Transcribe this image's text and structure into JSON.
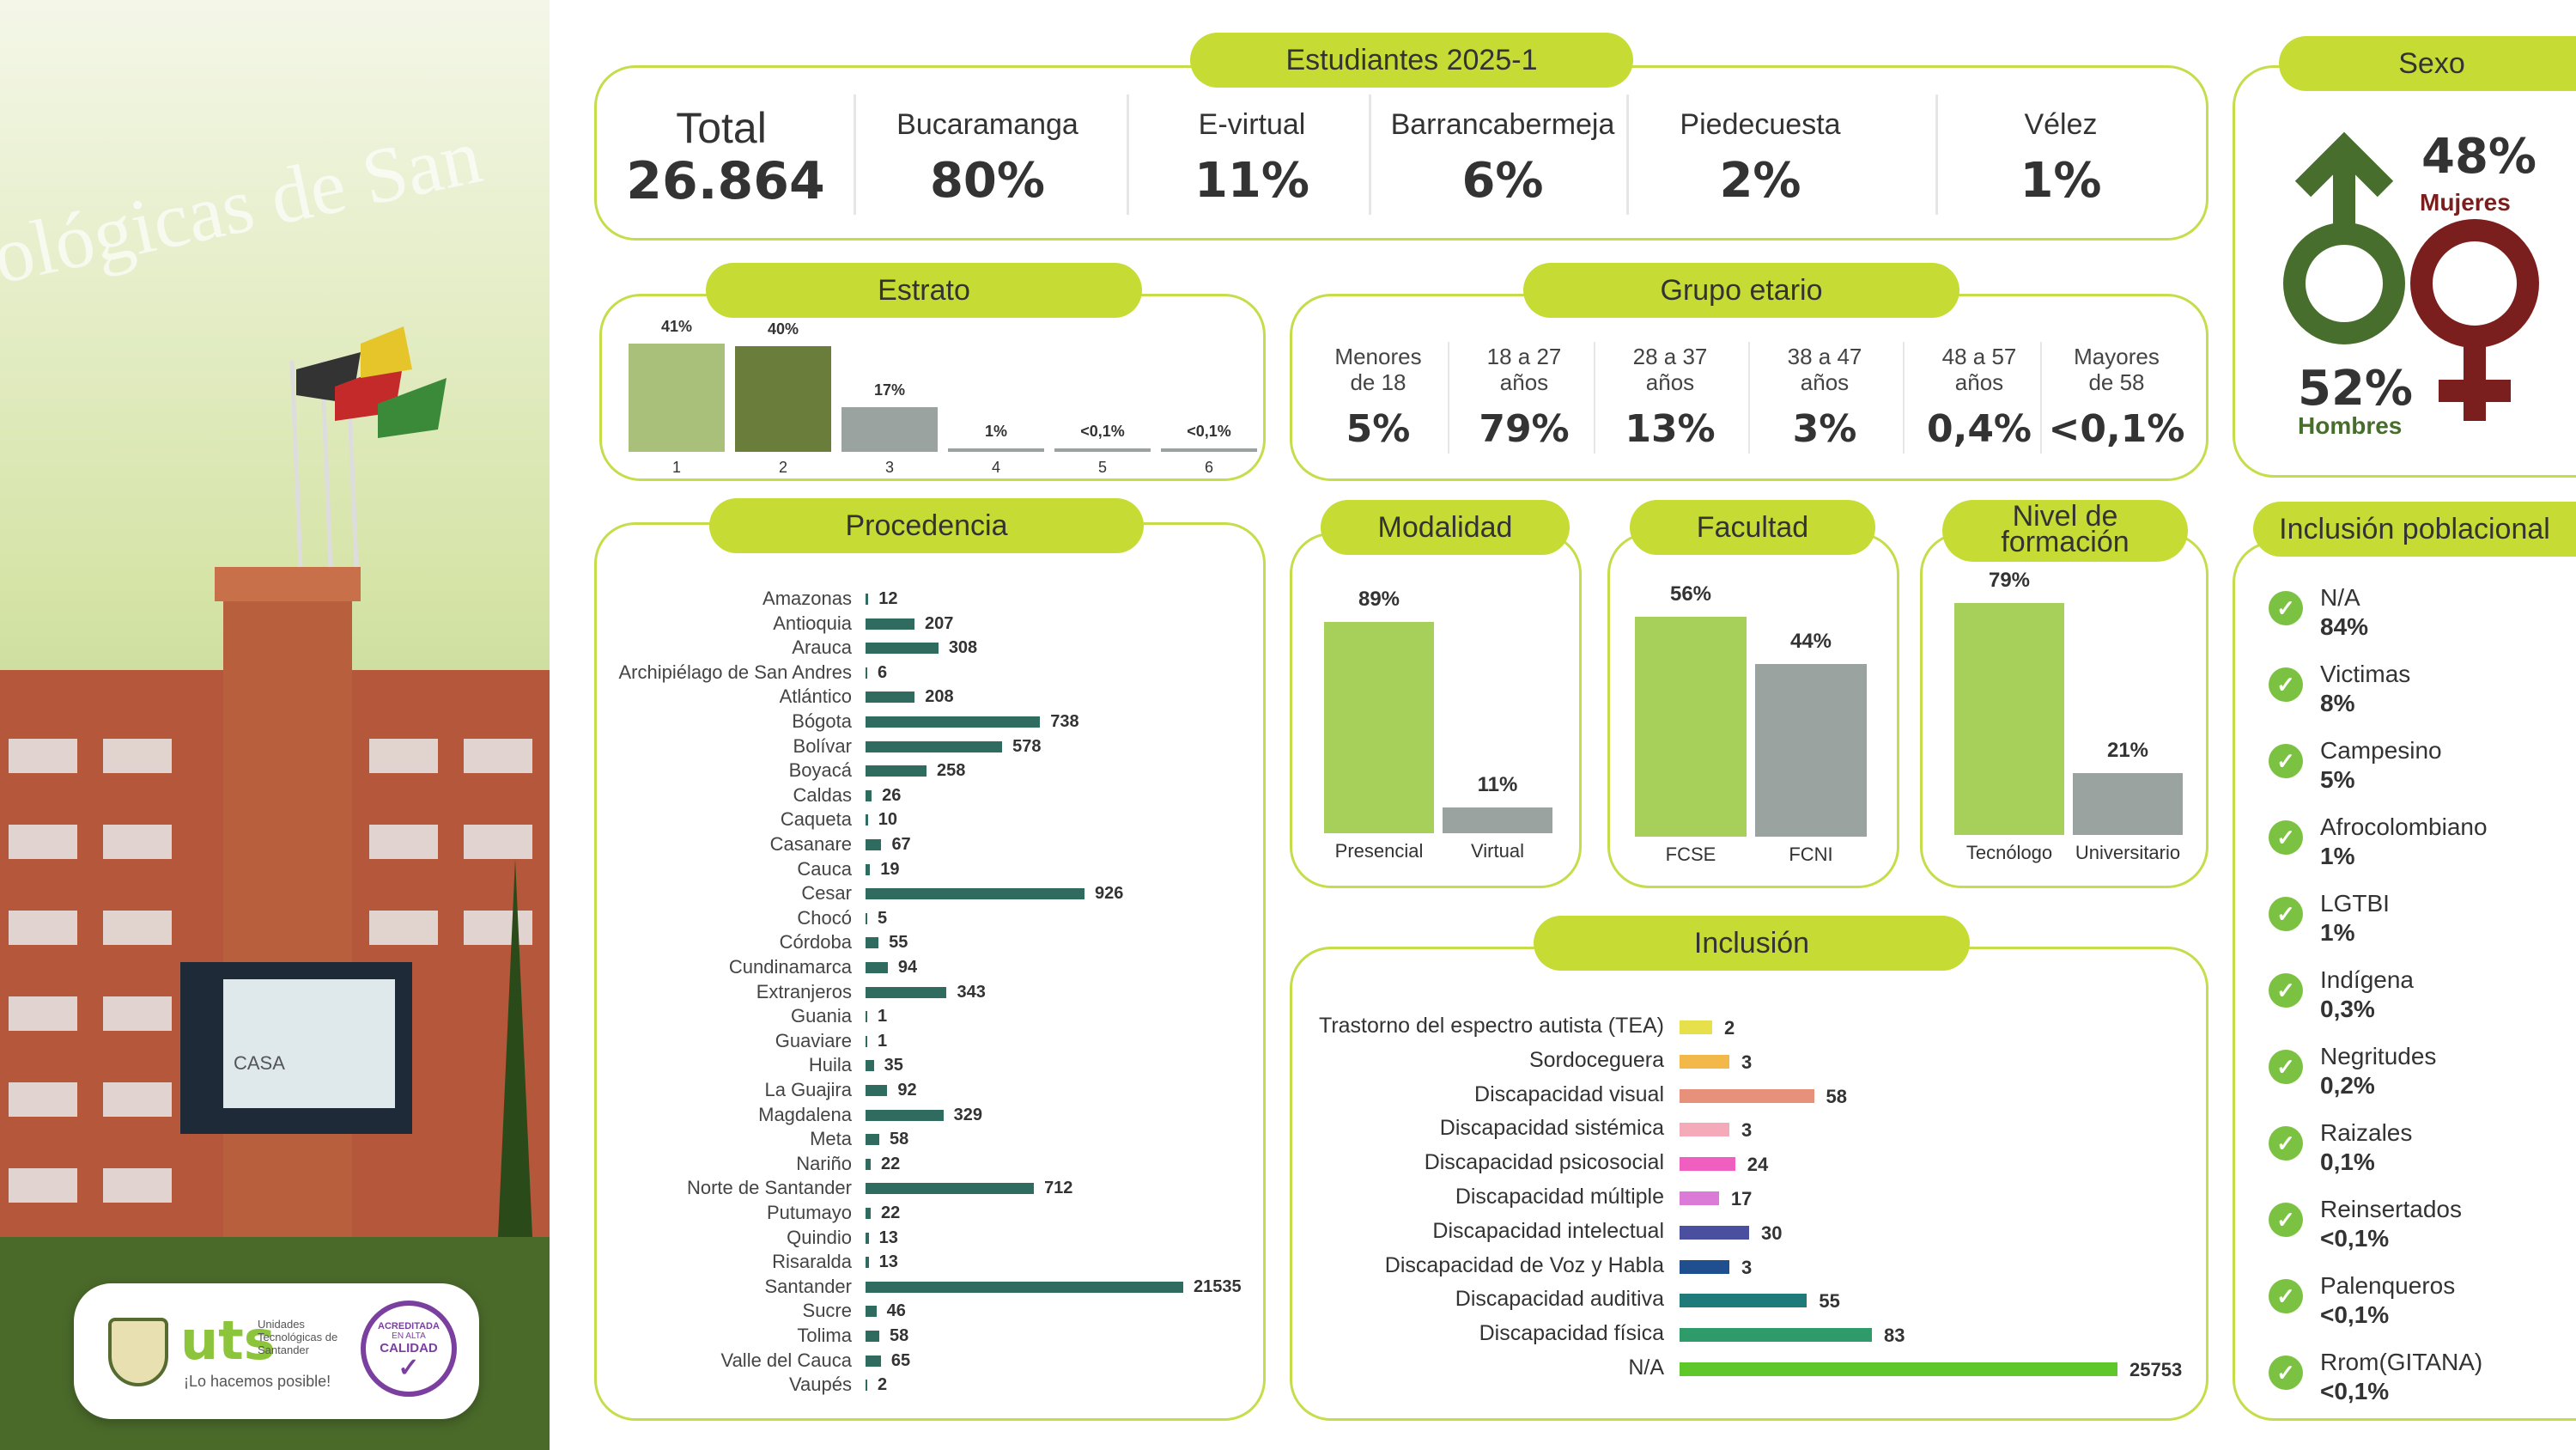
{
  "header": {
    "title": "Estudiantes 2025-1",
    "total_label": "Total",
    "total_value": "26.864",
    "sites": [
      {
        "name": "Bucaramanga",
        "value": "80%"
      },
      {
        "name": "E-virtual",
        "value": "11%"
      },
      {
        "name": "Barrancabermeja",
        "value": "6%"
      },
      {
        "name": "Piedecuesta",
        "value": "2%"
      },
      {
        "name": "Vélez",
        "value": "1%"
      }
    ]
  },
  "sexo": {
    "title": "Sexo",
    "male_value": "52%",
    "male_label": "Hombres",
    "female_value": "48%",
    "female_label": "Mujeres",
    "male_color": "#476e2c",
    "female_color": "#7a1e1e"
  },
  "photo": {
    "banner_text": "ológicas de San",
    "sign_text": "CASA",
    "logo_text": "uts",
    "logo_sub": "Unidades Tecnológicas de Santander",
    "logo_slogan": "¡Lo hacemos posible!",
    "badge_top": "ACREDITADA",
    "badge_mid": "CALIDAD",
    "badge_sub": "EN ALTA"
  },
  "estrato": {
    "title": "Estrato"
  },
  "grupo": {
    "title": "Grupo etario",
    "items": [
      {
        "l1": "Menores",
        "l2": "de 18",
        "value": "5%"
      },
      {
        "l1": "18 a 27",
        "l2": "años",
        "value": "79%"
      },
      {
        "l1": "28 a 37",
        "l2": "años",
        "value": "13%"
      },
      {
        "l1": "38 a 47",
        "l2": "años",
        "value": "3%"
      },
      {
        "l1": "48 a 57",
        "l2": "años",
        "value": "0,4%"
      },
      {
        "l1": "Mayores",
        "l2": "de 58",
        "value": "<0,1%"
      }
    ]
  },
  "procedencia": {
    "title": "Procedencia"
  },
  "modalidad": {
    "title": "Modalidad"
  },
  "facultad": {
    "title": "Facultad"
  },
  "nivel": {
    "title_l1": "Nivel de",
    "title_l2": "formación"
  },
  "inclusion": {
    "title": "Inclusión"
  },
  "poblacional": {
    "title": "Inclusión poblacional",
    "items": [
      {
        "name": "N/A",
        "value": "84%"
      },
      {
        "name": "Victimas",
        "value": "8%"
      },
      {
        "name": "Campesino",
        "value": "5%"
      },
      {
        "name": "Afrocolombiano",
        "value": "1%"
      },
      {
        "name": "LGTBI",
        "value": "1%"
      },
      {
        "name": "Indígena",
        "value": "0,3%"
      },
      {
        "name": "Negritudes",
        "value": "0,2%"
      },
      {
        "name": "Raizales",
        "value": "0,1%"
      },
      {
        "name": "Reinsertados",
        "value": "<0,1%"
      },
      {
        "name": "Palenqueros",
        "value": "<0,1%"
      },
      {
        "name": "Rrom(GITANA)",
        "value": "<0,1%"
      }
    ]
  },
  "chart_data": [
    {
      "type": "bar",
      "id": "estrato",
      "categories": [
        "1",
        "2",
        "3",
        "4",
        "5",
        "6"
      ],
      "values": [
        41,
        40,
        17,
        1,
        0.05,
        0.05
      ],
      "labels": [
        "41%",
        "40%",
        "17%",
        "1%",
        "<0,1%",
        "<0,1%"
      ],
      "colors": [
        "#a9c07a",
        "#6b7d3a",
        "#9aa3a0",
        "#9aa3a0",
        "#9aa3a0",
        "#9aa3a0"
      ],
      "ylim": [
        0,
        41
      ]
    },
    {
      "type": "bar",
      "id": "procedencia",
      "orientation": "horizontal",
      "categories": [
        "Amazonas",
        "Antioquia",
        "Arauca",
        "Archipiélago de San Andres",
        "Atlántico",
        "Bógota",
        "Bolívar",
        "Boyacá",
        "Caldas",
        "Caqueta",
        "Casanare",
        "Cauca",
        "Cesar",
        "Chocó",
        "Córdoba",
        "Cundinamarca",
        "Extranjeros",
        "Guania",
        "Guaviare",
        "Huila",
        "La Guajira",
        "Magdalena",
        "Meta",
        "Nariño",
        "Norte de Santander",
        "Putumayo",
        "Quindio",
        "Risaralda",
        "Santander",
        "Sucre",
        "Tolima",
        "Valle del Cauca",
        "Vaupés"
      ],
      "values": [
        12,
        207,
        308,
        6,
        208,
        738,
        578,
        258,
        26,
        10,
        67,
        19,
        926,
        5,
        55,
        94,
        343,
        1,
        1,
        35,
        92,
        329,
        58,
        22,
        712,
        22,
        13,
        13,
        21535,
        46,
        58,
        65,
        2
      ],
      "color": "#2f6b5e"
    },
    {
      "type": "bar",
      "id": "modalidad",
      "categories": [
        "Presencial",
        "Virtual"
      ],
      "values": [
        89,
        11
      ],
      "labels": [
        "89%",
        "11%"
      ],
      "colors": [
        "#a6d05a",
        "#9aa3a0"
      ],
      "ylim": [
        0,
        89
      ]
    },
    {
      "type": "bar",
      "id": "facultad",
      "categories": [
        "FCSE",
        "FCNI"
      ],
      "values": [
        56,
        44
      ],
      "labels": [
        "56%",
        "44%"
      ],
      "colors": [
        "#a6d05a",
        "#9aa3a0"
      ],
      "ylim": [
        0,
        56
      ]
    },
    {
      "type": "bar",
      "id": "nivel",
      "categories": [
        "Tecnólogo",
        "Universitario"
      ],
      "values": [
        79,
        21
      ],
      "labels": [
        "79%",
        "21%"
      ],
      "colors": [
        "#a6d05a",
        "#9aa3a0"
      ],
      "ylim": [
        0,
        79
      ]
    },
    {
      "type": "bar",
      "id": "inclusion",
      "orientation": "horizontal",
      "categories": [
        "Trastorno del espectro autista (TEA)",
        "Sordoceguera",
        "Discapacidad visual",
        "Discapacidad sistémica",
        "Discapacidad psicosocial",
        "Discapacidad múltiple",
        "Discapacidad intelectual",
        "Discapacidad de Voz y Habla",
        "Discapacidad auditiva",
        "Discapacidad física",
        "N/A"
      ],
      "values": [
        2,
        3,
        58,
        3,
        24,
        17,
        30,
        3,
        55,
        83,
        25753
      ],
      "colors": [
        "#e8e04a",
        "#f2b94a",
        "#e8917a",
        "#f4aab8",
        "#ee5fc0",
        "#dc7ad8",
        "#4a4fa0",
        "#1f4f8f",
        "#1f7a7a",
        "#2f9a6a",
        "#5ec82a"
      ]
    }
  ]
}
